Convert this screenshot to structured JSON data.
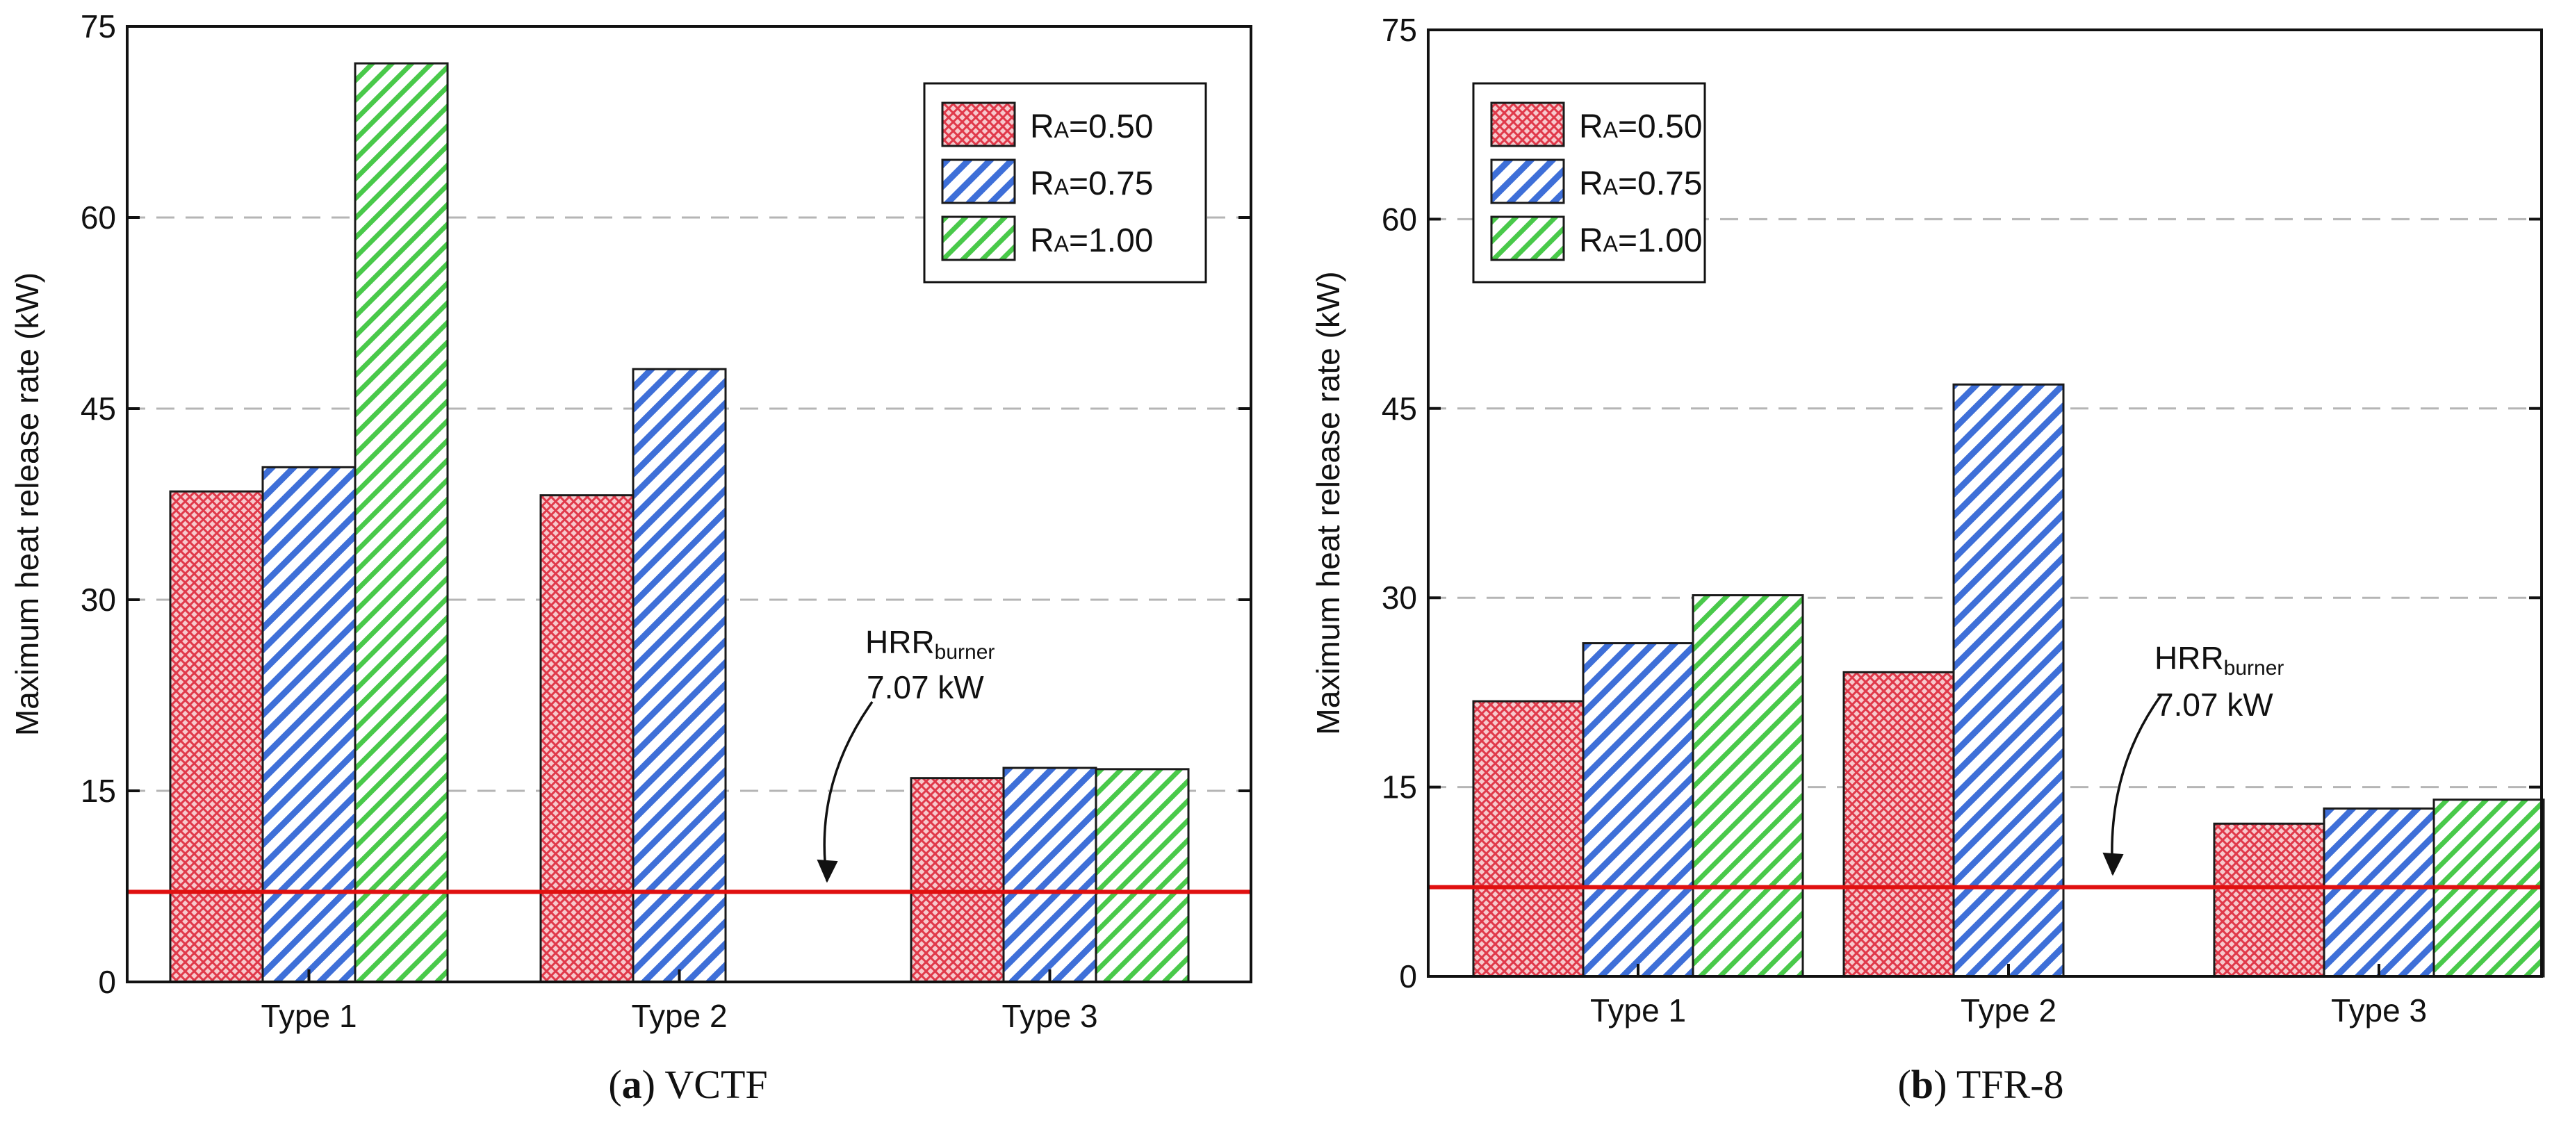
{
  "colors": {
    "ra050": "#e0394a",
    "ra075": "#3e6fd8",
    "ra100": "#49c94a",
    "burner_line": "#e01010",
    "gridline": "#b5b5b5"
  },
  "chart_data": [
    {
      "type": "bar",
      "caption": {
        "label": "a",
        "text": "VCTF"
      },
      "ylabel": "Maximum heat release rate (kW)",
      "ylim": [
        0,
        75
      ],
      "yticks": [
        "0",
        "15",
        "30",
        "45",
        "60",
        "75"
      ],
      "categories": [
        "Type 1",
        "Type 2",
        "Type 3"
      ],
      "series": [
        {
          "name_main": "R",
          "name_sub": "A",
          "name_value": "=0.50",
          "values": [
            38.5,
            38.2,
            16.0
          ]
        },
        {
          "name_main": "R",
          "name_sub": "A",
          "name_value": "=0.75",
          "values": [
            40.4,
            48.1,
            16.8
          ]
        },
        {
          "name_main": "R",
          "name_sub": "A",
          "name_value": "=1.00",
          "values": [
            72.1,
            null,
            16.7
          ]
        }
      ],
      "reference_line": {
        "value": 7.07,
        "label_main": "HRR",
        "label_sub": "burner",
        "label_value": "7.07 kW"
      },
      "legend_position": "top-right",
      "grid": "horizontal dashed"
    },
    {
      "type": "bar",
      "caption": {
        "label": "b",
        "text": "TFR-8"
      },
      "ylabel": "Maximum heat release rate (kW)",
      "ylim": [
        0,
        75
      ],
      "yticks": [
        "0",
        "15",
        "30",
        "45",
        "60",
        "75"
      ],
      "categories": [
        "Type 1",
        "Type 2",
        "Type 3"
      ],
      "series": [
        {
          "name_main": "R",
          "name_sub": "A",
          "name_value": "=0.50",
          "values": [
            21.8,
            24.1,
            12.1
          ]
        },
        {
          "name_main": "R",
          "name_sub": "A",
          "name_value": "=0.75",
          "values": [
            26.4,
            46.9,
            13.3
          ]
        },
        {
          "name_main": "R",
          "name_sub": "A",
          "name_value": "=1.00",
          "values": [
            30.2,
            null,
            14.0
          ]
        }
      ],
      "reference_line": {
        "value": 7.07,
        "label_main": "HRR",
        "label_sub": "burner",
        "label_value": "7.07 kW"
      },
      "legend_position": "top-left",
      "grid": "horizontal dashed"
    }
  ]
}
